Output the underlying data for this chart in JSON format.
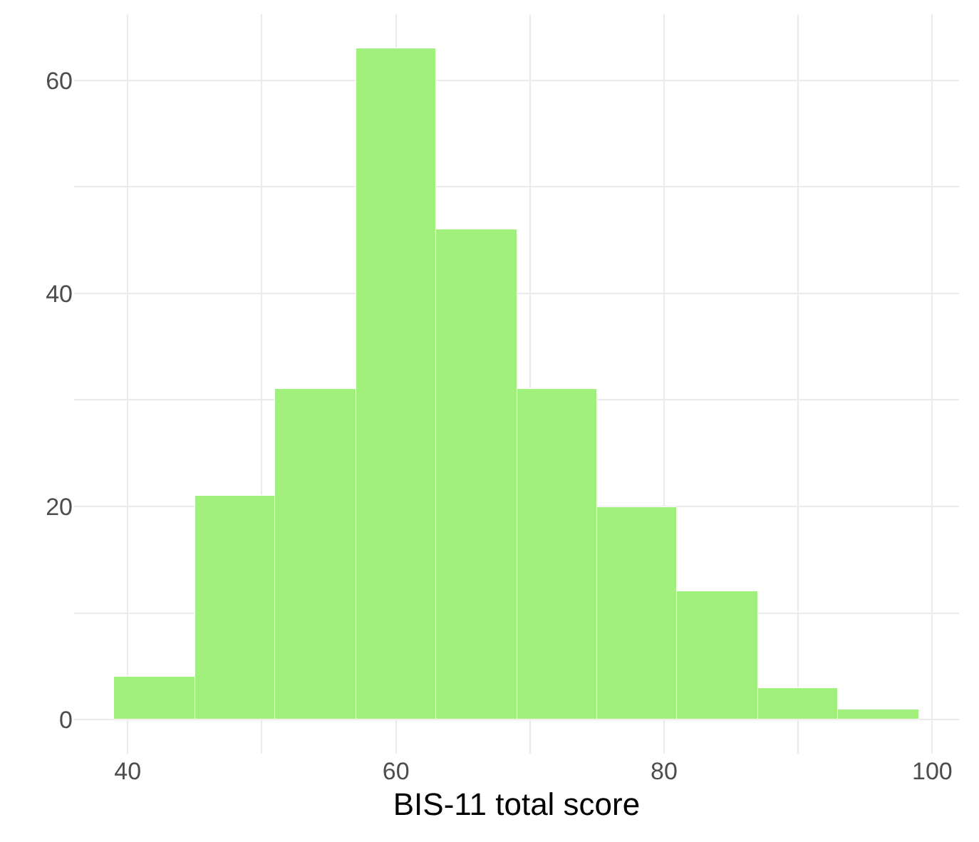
{
  "chart_data": {
    "type": "histogram",
    "xlabel": "BIS-11 total score",
    "bins": [
      39,
      45,
      51,
      57,
      63,
      69,
      75,
      81,
      87,
      93,
      99
    ],
    "values": [
      4,
      21,
      31,
      63,
      46,
      31,
      20,
      12,
      3,
      1
    ],
    "color": "#a1f07e",
    "xlim": [
      36,
      102
    ],
    "xticks": [
      40,
      {
        "value": 50,
        "label": null
      },
      60,
      {
        "value": 70,
        "label": null
      },
      80,
      {
        "value": 90,
        "label": null
      },
      100
    ],
    "ylim": [
      -3.2,
      66.2
    ],
    "yticks": [
      0,
      {
        "value": 10,
        "label": null
      },
      20,
      {
        "value": 30,
        "label": null
      },
      40,
      {
        "value": 50,
        "label": null
      },
      60
    ],
    "grid": true
  }
}
